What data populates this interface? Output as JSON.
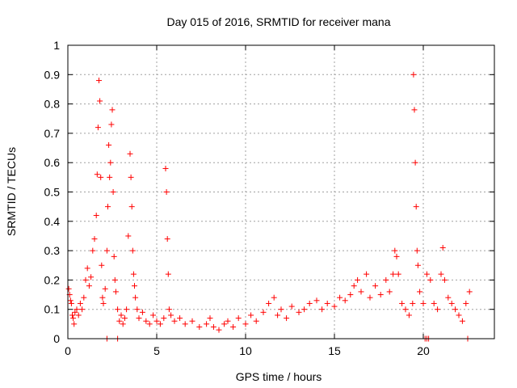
{
  "chart_data": {
    "type": "scatter",
    "title": "Day 015 of 2016, SRMTID for receiver mana",
    "xlabel": "GPS time / hours",
    "ylabel": "SRMTID / TECUs",
    "xlim": [
      0,
      24
    ],
    "ylim": [
      0,
      1
    ],
    "grid": true,
    "marker": "+",
    "color": "#ff0000",
    "x_ticks": [
      "0",
      "5",
      "10",
      "15",
      "20"
    ],
    "y_ticks": [
      "0",
      "0.1",
      "0.2",
      "0.3",
      "0.4",
      "0.5",
      "0.6",
      "0.7",
      "0.8",
      "0.9",
      "1"
    ],
    "series": [
      {
        "name": "SRMTID",
        "x": [
          0.05,
          0.1,
          0.15,
          0.2,
          0.25,
          0.3,
          0.35,
          0.4,
          0.5,
          0.6,
          0.7,
          0.8,
          0.9,
          1.0,
          1.1,
          1.2,
          1.3,
          1.4,
          1.5,
          1.6,
          1.65,
          1.7,
          1.75,
          1.8,
          1.85,
          1.9,
          1.95,
          2.0,
          2.1,
          2.2,
          2.25,
          2.3,
          2.35,
          2.4,
          2.45,
          2.5,
          2.55,
          2.6,
          2.65,
          2.7,
          2.8,
          2.9,
          3.0,
          3.1,
          3.2,
          3.3,
          3.4,
          3.5,
          3.55,
          3.6,
          3.65,
          3.7,
          3.75,
          3.8,
          3.9,
          4.0,
          4.2,
          4.4,
          4.6,
          4.8,
          5.0,
          5.2,
          5.4,
          5.5,
          5.55,
          5.6,
          5.65,
          5.7,
          5.8,
          6.0,
          6.3,
          6.6,
          7.0,
          7.4,
          7.8,
          8.0,
          8.2,
          8.5,
          8.8,
          9.0,
          9.3,
          9.6,
          10.0,
          10.3,
          10.6,
          11.0,
          11.3,
          11.6,
          11.8,
          12.0,
          12.3,
          12.6,
          13.0,
          13.3,
          13.6,
          14.0,
          14.3,
          14.6,
          15.0,
          15.3,
          15.6,
          15.9,
          16.1,
          16.3,
          16.5,
          16.8,
          17.0,
          17.3,
          17.6,
          17.9,
          18.1,
          18.3,
          18.4,
          18.5,
          18.6,
          18.8,
          19.0,
          19.2,
          19.4,
          19.45,
          19.5,
          19.55,
          19.6,
          19.65,
          19.7,
          19.8,
          20.0,
          20.2,
          20.4,
          20.6,
          20.8,
          21.0,
          21.1,
          21.2,
          21.4,
          21.6,
          21.8,
          22.0,
          22.2,
          22.4,
          22.6,
          2.2,
          2.8,
          20.1,
          20.2,
          20.3,
          22.5
        ],
        "y": [
          0.17,
          0.15,
          0.13,
          0.12,
          0.08,
          0.07,
          0.05,
          0.09,
          0.1,
          0.08,
          0.12,
          0.1,
          0.14,
          0.2,
          0.24,
          0.18,
          0.21,
          0.3,
          0.34,
          0.42,
          0.56,
          0.72,
          0.88,
          0.81,
          0.55,
          0.25,
          0.14,
          0.12,
          0.17,
          0.3,
          0.45,
          0.66,
          0.55,
          0.6,
          0.73,
          0.78,
          0.5,
          0.28,
          0.2,
          0.16,
          0.1,
          0.06,
          0.08,
          0.05,
          0.07,
          0.1,
          0.35,
          0.63,
          0.55,
          0.45,
          0.3,
          0.22,
          0.18,
          0.14,
          0.1,
          0.07,
          0.09,
          0.06,
          0.05,
          0.08,
          0.06,
          0.05,
          0.07,
          0.58,
          0.5,
          0.34,
          0.22,
          0.1,
          0.08,
          0.06,
          0.07,
          0.05,
          0.06,
          0.04,
          0.05,
          0.07,
          0.04,
          0.03,
          0.05,
          0.06,
          0.04,
          0.07,
          0.05,
          0.08,
          0.06,
          0.09,
          0.12,
          0.14,
          0.08,
          0.1,
          0.07,
          0.11,
          0.09,
          0.1,
          0.12,
          0.13,
          0.1,
          0.12,
          0.11,
          0.14,
          0.13,
          0.15,
          0.18,
          0.2,
          0.16,
          0.22,
          0.14,
          0.18,
          0.15,
          0.2,
          0.16,
          0.22,
          0.3,
          0.28,
          0.22,
          0.12,
          0.1,
          0.08,
          0.12,
          0.9,
          0.78,
          0.6,
          0.45,
          0.3,
          0.25,
          0.16,
          0.12,
          0.22,
          0.2,
          0.12,
          0.1,
          0.22,
          0.31,
          0.2,
          0.14,
          0.12,
          0.1,
          0.08,
          0.06,
          0.12,
          0.16,
          0.0,
          0.0,
          0.0,
          0.0,
          0.0,
          0.0
        ]
      }
    ]
  }
}
